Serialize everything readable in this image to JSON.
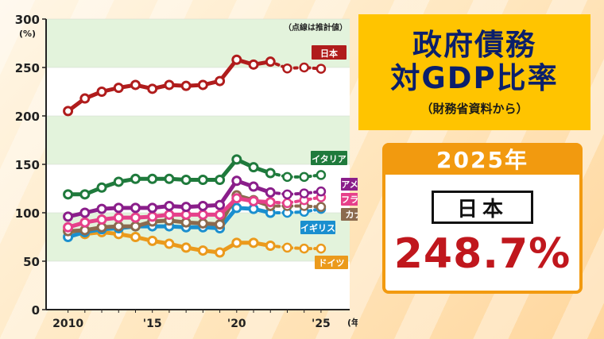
{
  "header": {
    "title_line1": "政府債務",
    "title_line2": "対GDP比率",
    "source": "（財務省資料から）"
  },
  "highlight": {
    "year": "2025年",
    "country": "日本",
    "value": "248.7%"
  },
  "chart_data": {
    "type": "line",
    "title": "",
    "xlabel": "",
    "ylabel": "",
    "y_unit_label": "(%)",
    "x_unit_label": "(年)",
    "note": "（点線は推計値）",
    "ylim": [
      0,
      300
    ],
    "xlim": [
      2010,
      2025
    ],
    "yticks": [
      0,
      50,
      100,
      150,
      200,
      250,
      300
    ],
    "xticks": [
      {
        "value": 2010,
        "label": "2010"
      },
      {
        "value": 2015,
        "label": "'15"
      },
      {
        "value": 2020,
        "label": "'20"
      },
      {
        "value": 2025,
        "label": "'25"
      }
    ],
    "bands": [
      [
        50,
        100
      ],
      [
        150,
        200
      ],
      [
        250,
        300
      ]
    ],
    "x": [
      2010,
      2011,
      2012,
      2013,
      2014,
      2015,
      2016,
      2017,
      2018,
      2019,
      2020,
      2021,
      2022,
      2023,
      2024,
      2025
    ],
    "estimate_from": 2023,
    "series": [
      {
        "name": "日本",
        "color": "#b01c1c",
        "label_text_color": "#ffffff",
        "values": [
          205,
          218,
          225,
          229,
          232,
          228,
          232,
          231,
          232,
          236,
          258,
          253,
          256,
          249,
          250,
          248.7
        ]
      },
      {
        "name": "イタリア",
        "color": "#1f7a3c",
        "label_text_color": "#ffffff",
        "values": [
          119,
          119,
          126,
          132,
          135,
          135,
          135,
          134,
          134,
          134,
          155,
          147,
          141,
          137,
          137,
          139
        ]
      },
      {
        "name": "アメリカ",
        "color": "#8a1e8a",
        "label_text_color": "#ffffff",
        "values": [
          96,
          100,
          104,
          105,
          105,
          105,
          107,
          106,
          107,
          108,
          133,
          127,
          121,
          119,
          120,
          122
        ]
      },
      {
        "name": "フランス",
        "color": "#e6408a",
        "label_text_color": "#ffffff",
        "values": [
          85,
          90,
          93,
          95,
          95,
          96,
          98,
          98,
          98,
          98,
          115,
          112,
          111,
          110,
          113,
          116
        ]
      },
      {
        "name": "カナダ",
        "color": "#8b6a4e",
        "label_text_color": "#ffffff",
        "values": [
          81,
          82,
          85,
          86,
          86,
          91,
          92,
          90,
          89,
          88,
          118,
          113,
          107,
          107,
          107,
          106
        ]
      },
      {
        "name": "イギリス",
        "color": "#1a8fcf",
        "label_text_color": "#ffffff",
        "values": [
          75,
          80,
          83,
          84,
          86,
          86,
          86,
          85,
          85,
          84,
          105,
          104,
          100,
          100,
          101,
          104
        ]
      },
      {
        "name": "ドイツ",
        "color": "#eb9a1c",
        "label_text_color": "#ffffff",
        "values": [
          82,
          78,
          80,
          78,
          75,
          71,
          68,
          64,
          61,
          59,
          69,
          69,
          66,
          64,
          63,
          63
        ]
      }
    ]
  }
}
